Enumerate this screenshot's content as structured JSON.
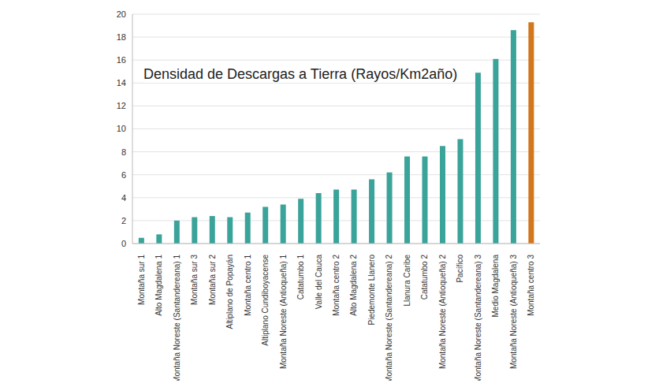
{
  "chart_data": {
    "type": "bar",
    "title": "Densidad de Descargas a Tierra (Rayos/Km2año)",
    "categories": [
      "Montaña sur 1",
      "Alto Magdalena 1",
      "Montaña Noreste (Santandereana) 1",
      "Montaña sur 3",
      "Montaña sur 2",
      "Altiplano de Popayán",
      "Montaña centro 1",
      "Altiplano Cundiboyacense",
      "Montaña Noreste (Antioqueña) 1",
      "Catatumbo 1",
      "Valle del Cauca",
      "Montaña centro 2",
      "Alto Magdalena 2",
      "Piedemonte Llanero",
      "Montaña Noreste (Santandereana) 2",
      "Llanura Caribe",
      "Catatumbo 2",
      "Montaña Noreste (Antioqueña) 2",
      "Pacífico",
      "Montaña Noreste (Santandereana) 3",
      "Medio Magdalena",
      "Montaña Noreste (Antioqueña) 3",
      "Montaña centro 3"
    ],
    "values": [
      0.5,
      0.8,
      2.0,
      2.3,
      2.4,
      2.3,
      2.7,
      3.2,
      3.4,
      3.9,
      4.4,
      4.7,
      4.7,
      5.6,
      6.2,
      7.6,
      7.6,
      8.5,
      9.1,
      14.9,
      16.1,
      18.6,
      19.3
    ],
    "colors": [
      "#3aa39a",
      "#3aa39a",
      "#3aa39a",
      "#3aa39a",
      "#3aa39a",
      "#3aa39a",
      "#3aa39a",
      "#3aa39a",
      "#3aa39a",
      "#3aa39a",
      "#3aa39a",
      "#3aa39a",
      "#3aa39a",
      "#3aa39a",
      "#3aa39a",
      "#3aa39a",
      "#3aa39a",
      "#3aa39a",
      "#3aa39a",
      "#3aa39a",
      "#3aa39a",
      "#3aa39a",
      "#d2771e"
    ],
    "ylim": [
      0,
      20
    ],
    "yticks": [
      0,
      2,
      4,
      6,
      8,
      10,
      12,
      14,
      16,
      18,
      20
    ],
    "grid": true
  }
}
